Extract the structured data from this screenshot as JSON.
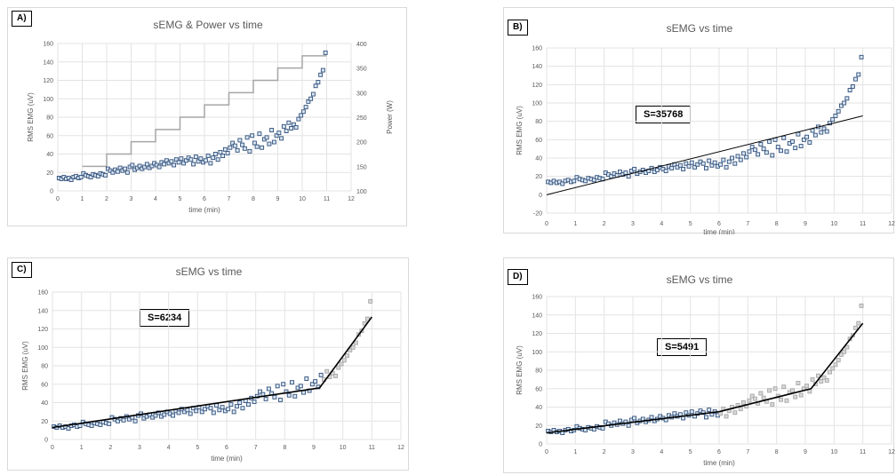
{
  "chart_data": [
    {
      "panel": "A)",
      "type": "scatter",
      "title": "sEMG & Power vs time",
      "xlabel": "time (min)",
      "ylabel": "RMS  EMG  (uV)",
      "y2label": "Power (W)",
      "xlim": [
        0,
        12
      ],
      "ylim": [
        0,
        160
      ],
      "y2lim": [
        100,
        400
      ],
      "xticks": [
        "0",
        "1",
        "2",
        "3",
        "4",
        "5",
        "6",
        "7",
        "8",
        "9",
        "10",
        "11",
        "12"
      ],
      "yticks": [
        "0",
        "20",
        "40",
        "60",
        "80",
        "100",
        "120",
        "140",
        "160"
      ],
      "y2ticks": [
        "100",
        "150",
        "200",
        "250",
        "300",
        "350",
        "400"
      ],
      "grid": true,
      "series": [],
      "power_steps": {
        "x": [
          1,
          2,
          3,
          4,
          5,
          6,
          7,
          8,
          9,
          10,
          11
        ],
        "y": [
          150,
          175,
          200,
          225,
          250,
          275,
          300,
          325,
          350,
          375,
          375
        ]
      },
      "fit_lines": []
    },
    {
      "panel": "B)",
      "type": "scatter",
      "title": "sEMG vs time",
      "xlabel": "time (min)",
      "ylabel": "RMS  EMG  (uV)",
      "annotation": "S=35768",
      "xlim": [
        0,
        12
      ],
      "ylim": [
        -20,
        160
      ],
      "xticks": [
        "0",
        "1",
        "2",
        "3",
        "4",
        "5",
        "6",
        "7",
        "8",
        "9",
        "10",
        "11",
        "12"
      ],
      "yticks": [
        "-20",
        "0",
        "20",
        "40",
        "60",
        "80",
        "100",
        "120",
        "140",
        "160"
      ],
      "grid": true,
      "fit_lines": [
        {
          "x": [
            0,
            11
          ],
          "y": [
            0,
            86
          ]
        }
      ]
    },
    {
      "panel": "C)",
      "type": "scatter",
      "title": "sEMG vs time",
      "xlabel": "time (min)",
      "ylabel": "RMS  EMG  (uV)",
      "annotation": "S=6234",
      "xlim": [
        0,
        12
      ],
      "ylim": [
        0,
        160
      ],
      "xticks": [
        "0",
        "1",
        "2",
        "3",
        "4",
        "5",
        "6",
        "7",
        "8",
        "9",
        "10",
        "11",
        "12"
      ],
      "yticks": [
        "0",
        "20",
        "40",
        "60",
        "80",
        "100",
        "120",
        "140",
        "160"
      ],
      "grid": true,
      "gray_after": 9.3,
      "fit_lines": [
        {
          "x": [
            0,
            9.2
          ],
          "y": [
            13,
            56
          ]
        },
        {
          "x": [
            9.2,
            11
          ],
          "y": [
            56,
            133
          ]
        }
      ]
    },
    {
      "panel": "D)",
      "type": "scatter",
      "title": "sEMG vs time",
      "xlabel": "time (min)",
      "ylabel": "RMS  EMG  (uV)",
      "annotation": "S=5491",
      "xlim": [
        0,
        12
      ],
      "ylim": [
        0,
        160
      ],
      "xticks": [
        "0",
        "1",
        "2",
        "3",
        "4",
        "5",
        "6",
        "7",
        "8",
        "9",
        "10",
        "11",
        "12"
      ],
      "yticks": [
        "0",
        "20",
        "40",
        "60",
        "80",
        "100",
        "120",
        "140",
        "160"
      ],
      "grid": true,
      "gray_between": [
        6,
        9.3
      ],
      "gray_after": 9.3,
      "fit_lines": [
        {
          "x": [
            0,
            6
          ],
          "y": [
            12,
            35
          ]
        },
        {
          "x": [
            6,
            9.2
          ],
          "y": [
            35,
            60
          ]
        },
        {
          "x": [
            9.2,
            11
          ],
          "y": [
            60,
            131
          ]
        }
      ]
    }
  ],
  "emg_points": {
    "x": [
      0.05,
      0.15,
      0.25,
      0.35,
      0.45,
      0.55,
      0.65,
      0.75,
      0.85,
      0.95,
      1.05,
      1.15,
      1.25,
      1.35,
      1.45,
      1.55,
      1.65,
      1.75,
      1.85,
      1.95,
      2.05,
      2.15,
      2.25,
      2.35,
      2.45,
      2.55,
      2.65,
      2.75,
      2.85,
      2.95,
      3.05,
      3.15,
      3.25,
      3.35,
      3.45,
      3.55,
      3.65,
      3.75,
      3.85,
      3.95,
      4.05,
      4.15,
      4.25,
      4.35,
      4.45,
      4.55,
      4.65,
      4.75,
      4.85,
      4.95,
      5.05,
      5.15,
      5.25,
      5.35,
      5.45,
      5.55,
      5.65,
      5.75,
      5.85,
      5.95,
      6.05,
      6.15,
      6.25,
      6.35,
      6.45,
      6.55,
      6.65,
      6.75,
      6.85,
      6.95,
      7.05,
      7.15,
      7.25,
      7.35,
      7.45,
      7.55,
      7.65,
      7.75,
      7.85,
      7.95,
      8.05,
      8.15,
      8.25,
      8.35,
      8.45,
      8.55,
      8.65,
      8.75,
      8.85,
      8.95,
      9.05,
      9.15,
      9.25,
      9.35,
      9.45,
      9.55,
      9.65,
      9.75,
      9.85,
      9.95,
      10.05,
      10.15,
      10.25,
      10.35,
      10.45,
      10.55,
      10.65,
      10.75,
      10.85,
      10.95
    ],
    "y": [
      14,
      13,
      15,
      13,
      14,
      12,
      15,
      16,
      14,
      15,
      19,
      17,
      16,
      15,
      18,
      17,
      16,
      19,
      18,
      17,
      24,
      22,
      20,
      23,
      21,
      25,
      22,
      24,
      20,
      26,
      28,
      23,
      25,
      27,
      24,
      26,
      29,
      25,
      27,
      30,
      28,
      26,
      31,
      29,
      33,
      30,
      32,
      28,
      34,
      31,
      35,
      30,
      33,
      36,
      34,
      29,
      37,
      32,
      35,
      31,
      33,
      38,
      30,
      36,
      40,
      34,
      42,
      38,
      45,
      41,
      47,
      52,
      49,
      44,
      55,
      50,
      46,
      58,
      43,
      60,
      52,
      48,
      62,
      47,
      56,
      58,
      51,
      66,
      53,
      60,
      63,
      57,
      70,
      65,
      74,
      68,
      72,
      69,
      78,
      82,
      86,
      91,
      97,
      100,
      105,
      114,
      118,
      126,
      131,
      150
    ]
  }
}
